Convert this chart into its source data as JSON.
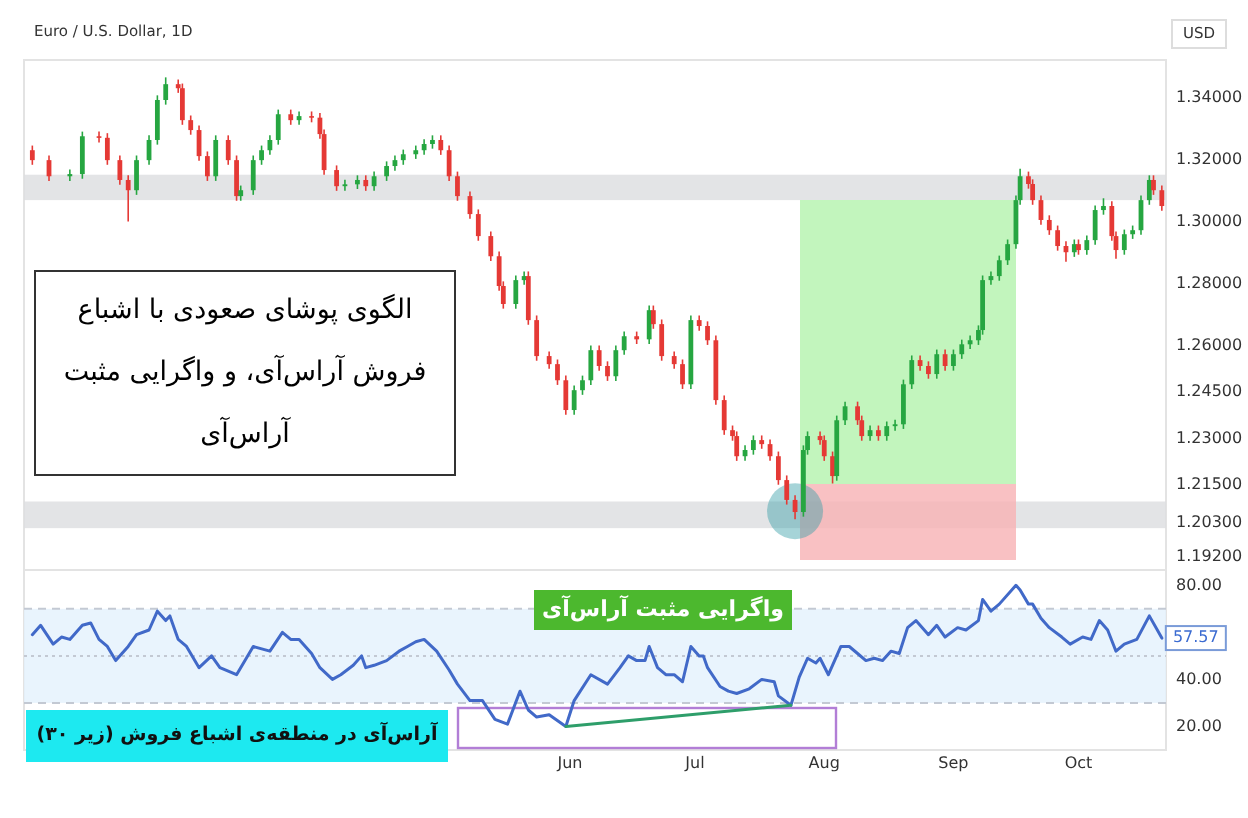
{
  "chart_data": [
    {
      "type": "candlestick",
      "title": "Euro / U.S. Dollar, 1D",
      "ylabel": "USD",
      "tick_labels": "y",
      "xlim": [
        "--01-21",
        "--10-22"
      ],
      "ylim": [
        1.1876,
        1.3521
      ],
      "yticks": [
        {
          "value": 1.34,
          "label": "1.34000"
        },
        {
          "value": 1.32,
          "label": "1.32000"
        },
        {
          "value": 1.3,
          "label": "1.30000"
        },
        {
          "value": 1.28,
          "label": "1.28000"
        },
        {
          "value": 1.26,
          "label": "1.26000"
        },
        {
          "value": 1.245,
          "label": "1.24500"
        },
        {
          "value": 1.23,
          "label": "1.23000"
        },
        {
          "value": 1.215,
          "label": "1.21500"
        },
        {
          "value": 1.203,
          "label": "1.20300"
        },
        {
          "value": 1.192,
          "label": "1.19200"
        }
      ],
      "bands": [
        {
          "axis": "y",
          "from": 1.3069,
          "to": 1.3151,
          "color": "#dcdde0"
        },
        {
          "axis": "y",
          "from": 1.2011,
          "to": 1.2097,
          "color": "#dcdde0"
        }
      ],
      "annotations": [
        "الگوی پوشای صعودی با اشباع فروش آراس‌آی، و واگرایی مثبت آراس‌آی"
      ],
      "x": [
        "--01-23",
        "--01-27",
        "--02-01",
        "--02-04",
        "--02-08",
        "--02-10",
        "--02-13",
        "--02-15",
        "--02-17",
        "--02-20",
        "--02-22",
        "--02-24",
        "--02-27",
        "--02-28",
        "--03-02",
        "--03-04",
        "--03-06",
        "--03-08",
        "--03-11",
        "--03-13",
        "--03-14",
        "--03-17",
        "--03-19",
        "--03-21",
        "--03-23",
        "--03-26",
        "--03-28",
        "--03-31",
        "--04-02",
        "--04-03",
        "--04-06",
        "--04-08",
        "--04-11",
        "--04-13",
        "--04-15",
        "--04-18",
        "--04-20",
        "--04-22",
        "--04-25",
        "--04-27",
        "--04-29",
        "--05-01",
        "--05-03",
        "--05-05",
        "--05-08",
        "--05-10",
        "--05-13",
        "--05-15",
        "--05-16",
        "--05-19",
        "--05-21",
        "--05-22",
        "--05-24",
        "--05-27",
        "--05-29",
        "--05-31",
        "--06-02",
        "--06-04",
        "--06-06",
        "--06-08",
        "--06-10",
        "--06-12",
        "--06-14",
        "--06-17",
        "--06-20",
        "--06-21",
        "--06-23",
        "--06-26",
        "--06-28",
        "--06-30",
        "--07-02",
        "--07-04",
        "--07-06",
        "--07-08",
        "--07-10",
        "--07-11",
        "--07-13",
        "--07-15",
        "--07-17",
        "--07-19",
        "--07-21",
        "--07-23",
        "--07-25",
        "--07-27",
        "--07-28",
        "--07-31",
        "--08-01",
        "--08-03",
        "--08-04",
        "--08-06",
        "--08-09",
        "--08-10",
        "--08-12",
        "--08-14",
        "--08-16",
        "--08-18",
        "--08-20",
        "--08-22",
        "--08-24",
        "--08-26",
        "--08-28",
        "--08-30",
        "--09-01",
        "--09-03",
        "--09-05",
        "--09-07",
        "--09-08",
        "--09-10",
        "--09-12",
        "--09-14",
        "--09-16",
        "--09-17",
        "--09-19",
        "--09-20",
        "--09-22",
        "--09-24",
        "--09-26",
        "--09-28",
        "--09-30",
        "--10-01",
        "--10-03",
        "--10-05",
        "--10-07",
        "--10-09",
        "--10-10",
        "--10-12",
        "--10-14",
        "--10-16",
        "--10-18",
        "--10-19",
        "--10-21"
      ],
      "ohlc": [
        [
          1.323,
          1.3245,
          1.3183,
          1.3198
        ],
        [
          1.3198,
          1.3213,
          1.3131,
          1.3146
        ],
        [
          1.3146,
          1.3168,
          1.3131,
          1.3153
        ],
        [
          1.3153,
          1.329,
          1.3138,
          1.3275
        ],
        [
          1.3275,
          1.329,
          1.3255,
          1.327
        ],
        [
          1.327,
          1.3285,
          1.3183,
          1.3198
        ],
        [
          1.3198,
          1.3213,
          1.3119,
          1.3134
        ],
        [
          1.3134,
          1.3149,
          1.3,
          1.3101
        ],
        [
          1.3101,
          1.3213,
          1.3086,
          1.3198
        ],
        [
          1.3198,
          1.3278,
          1.3183,
          1.3263
        ],
        [
          1.3263,
          1.3407,
          1.3248,
          1.3392
        ],
        [
          1.3392,
          1.3465,
          1.3377,
          1.3443
        ],
        [
          1.3443,
          1.3458,
          1.3415,
          1.343
        ],
        [
          1.343,
          1.3445,
          1.3312,
          1.3327
        ],
        [
          1.3327,
          1.3342,
          1.328,
          1.3295
        ],
        [
          1.3295,
          1.331,
          1.3196,
          1.3211
        ],
        [
          1.3211,
          1.3226,
          1.3131,
          1.3146
        ],
        [
          1.3146,
          1.3278,
          1.3131,
          1.3263
        ],
        [
          1.3263,
          1.3278,
          1.3183,
          1.3198
        ],
        [
          1.3198,
          1.3213,
          1.3067,
          1.3082
        ],
        [
          1.3082,
          1.3116,
          1.3067,
          1.3101
        ],
        [
          1.3101,
          1.3213,
          1.3086,
          1.3198
        ],
        [
          1.3198,
          1.3245,
          1.3183,
          1.323
        ],
        [
          1.323,
          1.3278,
          1.3215,
          1.3263
        ],
        [
          1.3263,
          1.3361,
          1.3248,
          1.3346
        ],
        [
          1.3346,
          1.3361,
          1.3312,
          1.3327
        ],
        [
          1.3327,
          1.3355,
          1.3312,
          1.334
        ],
        [
          1.334,
          1.3355,
          1.332,
          1.3335
        ],
        [
          1.3335,
          1.335,
          1.3267,
          1.3282
        ],
        [
          1.3282,
          1.3297,
          1.3151,
          1.3166
        ],
        [
          1.3166,
          1.3181,
          1.3099,
          1.3114
        ],
        [
          1.3114,
          1.3135,
          1.3099,
          1.312
        ],
        [
          1.312,
          1.3149,
          1.3105,
          1.3134
        ],
        [
          1.3134,
          1.3149,
          1.3099,
          1.3114
        ],
        [
          1.3114,
          1.3161,
          1.3099,
          1.3146
        ],
        [
          1.3146,
          1.3194,
          1.3131,
          1.3179
        ],
        [
          1.3179,
          1.3213,
          1.3164,
          1.3198
        ],
        [
          1.3198,
          1.3232,
          1.3183,
          1.3217
        ],
        [
          1.3217,
          1.3245,
          1.3202,
          1.323
        ],
        [
          1.323,
          1.3265,
          1.3215,
          1.325
        ],
        [
          1.325,
          1.3278,
          1.3235,
          1.3263
        ],
        [
          1.3263,
          1.3278,
          1.3215,
          1.323
        ],
        [
          1.323,
          1.3245,
          1.3131,
          1.3146
        ],
        [
          1.3146,
          1.3161,
          1.3067,
          1.3082
        ],
        [
          1.3082,
          1.3097,
          1.3009,
          1.3024
        ],
        [
          1.3024,
          1.3039,
          1.2938,
          1.2953
        ],
        [
          1.2953,
          1.2968,
          1.2873,
          1.2888
        ],
        [
          1.2888,
          1.2903,
          1.2777,
          1.2792
        ],
        [
          1.2792,
          1.2807,
          1.2719,
          1.2734
        ],
        [
          1.2734,
          1.2826,
          1.2719,
          1.2811
        ],
        [
          1.2811,
          1.2839,
          1.2796,
          1.2824
        ],
        [
          1.2824,
          1.2839,
          1.2667,
          1.2682
        ],
        [
          1.2682,
          1.2697,
          1.2551,
          1.2566
        ],
        [
          1.2566,
          1.2581,
          1.2525,
          1.254
        ],
        [
          1.254,
          1.2555,
          1.2473,
          1.2488
        ],
        [
          1.2488,
          1.2503,
          1.2377,
          1.2392
        ],
        [
          1.2392,
          1.2471,
          1.2377,
          1.2456
        ],
        [
          1.2456,
          1.2503,
          1.2441,
          1.2488
        ],
        [
          1.2488,
          1.26,
          1.2473,
          1.2585
        ],
        [
          1.2585,
          1.26,
          1.2519,
          1.2534
        ],
        [
          1.2534,
          1.2549,
          1.2486,
          1.2501
        ],
        [
          1.2501,
          1.26,
          1.2486,
          1.2585
        ],
        [
          1.2585,
          1.2645,
          1.257,
          1.263
        ],
        [
          1.263,
          1.2645,
          1.2605,
          1.262
        ],
        [
          1.262,
          1.2729,
          1.2605,
          1.2714
        ],
        [
          1.2714,
          1.2729,
          1.2654,
          1.2669
        ],
        [
          1.2669,
          1.2684,
          1.2551,
          1.2566
        ],
        [
          1.2566,
          1.2581,
          1.2525,
          1.254
        ],
        [
          1.254,
          1.2555,
          1.246,
          1.2475
        ],
        [
          1.2475,
          1.2697,
          1.246,
          1.2682
        ],
        [
          1.2682,
          1.2697,
          1.2648,
          1.2663
        ],
        [
          1.2663,
          1.2678,
          1.2602,
          1.2617
        ],
        [
          1.2617,
          1.2632,
          1.2409,
          1.2424
        ],
        [
          1.2424,
          1.2439,
          1.2312,
          1.2327
        ],
        [
          1.2327,
          1.2342,
          1.2293,
          1.2308
        ],
        [
          1.2308,
          1.2323,
          1.2228,
          1.2243
        ],
        [
          1.2243,
          1.2278,
          1.2228,
          1.2263
        ],
        [
          1.2263,
          1.231,
          1.2248,
          1.2295
        ],
        [
          1.2295,
          1.231,
          1.2267,
          1.2282
        ],
        [
          1.2282,
          1.2297,
          1.2228,
          1.2243
        ],
        [
          1.2243,
          1.2258,
          1.2151,
          1.2166
        ],
        [
          1.2166,
          1.2181,
          1.2087,
          1.2102
        ],
        [
          1.2102,
          1.2117,
          1.204,
          1.2063
        ],
        [
          1.2063,
          1.2278,
          1.2048,
          1.2263
        ],
        [
          1.2263,
          1.2323,
          1.2248,
          1.2308
        ],
        [
          1.2308,
          1.2323,
          1.228,
          1.2295
        ],
        [
          1.2295,
          1.231,
          1.2228,
          1.2243
        ],
        [
          1.2243,
          1.2258,
          1.2155,
          1.2179
        ],
        [
          1.2179,
          1.2374,
          1.2164,
          1.2359
        ],
        [
          1.2359,
          1.2419,
          1.2344,
          1.2404
        ],
        [
          1.2404,
          1.2419,
          1.2344,
          1.2359
        ],
        [
          1.2359,
          1.2374,
          1.2293,
          1.2308
        ],
        [
          1.2308,
          1.2342,
          1.2293,
          1.2327
        ],
        [
          1.2327,
          1.2342,
          1.2293,
          1.2308
        ],
        [
          1.2308,
          1.2355,
          1.2293,
          1.234
        ],
        [
          1.234,
          1.2361,
          1.2325,
          1.2346
        ],
        [
          1.2346,
          1.249,
          1.2331,
          1.2475
        ],
        [
          1.2475,
          1.2568,
          1.246,
          1.2553
        ],
        [
          1.2553,
          1.2568,
          1.2519,
          1.2534
        ],
        [
          1.2534,
          1.2549,
          1.2493,
          1.2508
        ],
        [
          1.2508,
          1.2587,
          1.2493,
          1.2572
        ],
        [
          1.2572,
          1.2587,
          1.2519,
          1.2534
        ],
        [
          1.2534,
          1.2587,
          1.2519,
          1.2572
        ],
        [
          1.2572,
          1.2619,
          1.2557,
          1.2604
        ],
        [
          1.2604,
          1.2632,
          1.2589,
          1.2617
        ],
        [
          1.2617,
          1.2665,
          1.2602,
          1.265
        ],
        [
          1.265,
          1.2826,
          1.2635,
          1.2811
        ],
        [
          1.2811,
          1.2839,
          1.2796,
          1.2824
        ],
        [
          1.2824,
          1.289,
          1.2809,
          1.2875
        ],
        [
          1.2875,
          1.2942,
          1.286,
          1.2927
        ],
        [
          1.2927,
          1.3084,
          1.2912,
          1.3069
        ],
        [
          1.3069,
          1.317,
          1.3054,
          1.3146
        ],
        [
          1.3146,
          1.3161,
          1.3106,
          1.3121
        ],
        [
          1.3121,
          1.3136,
          1.3054,
          1.3069
        ],
        [
          1.3069,
          1.3084,
          1.299,
          1.3005
        ],
        [
          1.3005,
          1.302,
          1.2957,
          1.2972
        ],
        [
          1.2972,
          1.2987,
          1.2906,
          1.2921
        ],
        [
          1.2921,
          1.2936,
          1.287,
          1.2901
        ],
        [
          1.2901,
          1.2942,
          1.2886,
          1.2927
        ],
        [
          1.2927,
          1.2942,
          1.2893,
          1.2908
        ],
        [
          1.2908,
          1.2955,
          1.2893,
          1.294
        ],
        [
          1.294,
          1.3052,
          1.2925,
          1.3037
        ],
        [
          1.3037,
          1.3075,
          1.3022,
          1.305
        ],
        [
          1.305,
          1.3065,
          1.2938,
          1.2953
        ],
        [
          1.2953,
          1.2968,
          1.288,
          1.2908
        ],
        [
          1.2908,
          1.2974,
          1.2893,
          1.2959
        ],
        [
          1.2959,
          1.2987,
          1.2944,
          1.2972
        ],
        [
          1.2972,
          1.3084,
          1.2957,
          1.3069
        ],
        [
          1.3069,
          1.3149,
          1.3054,
          1.3134
        ],
        [
          1.3134,
          1.3149,
          1.3086,
          1.3101
        ],
        [
          1.3101,
          1.3116,
          1.3035,
          1.305
        ]
      ],
      "colors": [
        "#e53935",
        "#e53935",
        "#26a641",
        "#26a641",
        "#e53935",
        "#e53935",
        "#e53935",
        "#e53935",
        "#26a641",
        "#26a641",
        "#26a641",
        "#26a641",
        "#e53935",
        "#e53935",
        "#e53935",
        "#e53935",
        "#e53935",
        "#26a641",
        "#e53935",
        "#e53935",
        "#26a641",
        "#26a641",
        "#26a641",
        "#26a641",
        "#26a641",
        "#e53935",
        "#26a641",
        "#e53935",
        "#e53935",
        "#e53935",
        "#e53935",
        "#26a641",
        "#26a641",
        "#e53935",
        "#26a641",
        "#26a641",
        "#26a641",
        "#26a641",
        "#26a641",
        "#26a641",
        "#26a641",
        "#e53935",
        "#e53935",
        "#e53935",
        "#e53935",
        "#e53935",
        "#e53935",
        "#e53935",
        "#e53935",
        "#26a641",
        "#26a641",
        "#e53935",
        "#e53935",
        "#e53935",
        "#e53935",
        "#e53935",
        "#26a641",
        "#26a641",
        "#26a641",
        "#e53935",
        "#e53935",
        "#26a641",
        "#26a641",
        "#e53935",
        "#26a641",
        "#e53935",
        "#e53935",
        "#e53935",
        "#e53935",
        "#26a641",
        "#e53935",
        "#e53935",
        "#e53935",
        "#e53935",
        "#e53935",
        "#e53935",
        "#26a641",
        "#26a641",
        "#e53935",
        "#e53935",
        "#e53935",
        "#e53935",
        "#e53935",
        "#26a641",
        "#26a641",
        "#e53935",
        "#e53935",
        "#e53935",
        "#26a641",
        "#26a641",
        "#e53935",
        "#e53935",
        "#26a641",
        "#e53935",
        "#26a641",
        "#26a641",
        "#26a641",
        "#26a641",
        "#e53935",
        "#e53935",
        "#26a641",
        "#e53935",
        "#26a641",
        "#26a641",
        "#26a641",
        "#26a641",
        "#26a641",
        "#26a641",
        "#26a641",
        "#26a641",
        "#26a641",
        "#26a641",
        "#e53935",
        "#e53935",
        "#e53935",
        "#e53935",
        "#e53935",
        "#e53935",
        "#26a641",
        "#e53935",
        "#26a641",
        "#26a641",
        "#26a641",
        "#e53935",
        "#e53935",
        "#26a641",
        "#26a641",
        "#26a641",
        "#26a641",
        "#e53935",
        "#e53935"
      ]
    },
    {
      "type": "line",
      "xlim": [
        "--01-21",
        "--10-22"
      ],
      "ylim": [
        10,
        86.5
      ],
      "xticks": [
        {
          "value": "--06-01",
          "label": "Jun"
        },
        {
          "value": "--07-01",
          "label": "Jul"
        },
        {
          "value": "--08-01",
          "label": "Aug"
        },
        {
          "value": "--09-01",
          "label": "Sep"
        },
        {
          "value": "--10-01",
          "label": "Oct"
        }
      ],
      "yticks": [
        {
          "value": 20,
          "label": "20.00"
        },
        {
          "value": 40,
          "label": "40.00"
        },
        {
          "value": 80,
          "label": "80.00"
        }
      ],
      "bands": [
        {
          "axis": "y",
          "from": 30,
          "to": 70,
          "color": "#e4f1fd"
        }
      ],
      "ref_lines": [
        {
          "axis": "y",
          "value": 70,
          "color": "#c3c9d3",
          "line_style": "dashed"
        },
        {
          "axis": "y",
          "value": 50,
          "color": "#c3c9d3",
          "line_style": "dotted"
        },
        {
          "axis": "y",
          "value": 30,
          "color": "#c3c9d3",
          "line_style": "dashed"
        }
      ],
      "annotations": [
        "واگرایی مثبت آراس‌آی",
        "آراس‌آی در منطقه‌ی اشباع فروش (زیر ۳۰)",
        {
          "text": "57.57",
          "x": "--10-21",
          "y": 57.57
        }
      ],
      "series": [
        {
          "color": "#4169c8",
          "x": [
            "--01-23",
            "--01-25",
            "--01-28",
            "--01-30",
            "--02-01",
            "--02-04",
            "--02-06",
            "--02-08",
            "--02-10",
            "--02-12",
            "--02-15",
            "--02-17",
            "--02-20",
            "--02-22",
            "--02-24",
            "--02-25",
            "--02-27",
            "--03-01",
            "--03-04",
            "--03-07",
            "--03-09",
            "--03-13",
            "--03-17",
            "--03-21",
            "--03-24",
            "--03-26",
            "--03-28",
            "--03-31",
            "--04-02",
            "--04-05",
            "--04-07",
            "--04-10",
            "--04-12",
            "--04-13",
            "--04-15",
            "--04-18",
            "--04-21",
            "--04-23",
            "--04-25",
            "--04-27",
            "--04-30",
            "--05-03",
            "--05-05",
            "--05-08",
            "--05-11",
            "--05-14",
            "--05-17",
            "--05-20",
            "--05-22",
            "--05-24",
            "--05-27",
            "--05-31",
            "--06-02",
            "--06-06",
            "--06-10",
            "--06-13",
            "--06-15",
            "--06-17",
            "--06-19",
            "--06-20",
            "--06-22",
            "--06-24",
            "--06-26",
            "--06-28",
            "--06-30",
            "--07-02",
            "--07-03",
            "--07-04",
            "--07-07",
            "--07-09",
            "--07-11",
            "--07-14",
            "--07-17",
            "--07-20",
            "--07-21",
            "--07-24",
            "--07-26",
            "--07-28",
            "--07-30",
            "--07-31",
            "--08-02",
            "--08-05",
            "--08-07",
            "--08-09",
            "--08-11",
            "--08-13",
            "--08-15",
            "--08-17",
            "--08-19",
            "--08-21",
            "--08-23",
            "--08-26",
            "--08-28",
            "--08-30",
            "--09-02",
            "--09-04",
            "--09-07",
            "--09-08",
            "--09-10",
            "--09-12",
            "--09-16",
            "--09-17",
            "--09-19",
            "--09-20",
            "--09-22",
            "--09-24",
            "--09-27",
            "--09-29",
            "--10-02",
            "--10-04",
            "--10-06",
            "--10-08",
            "--10-10",
            "--10-12",
            "--10-15",
            "--10-18",
            "--10-21"
          ],
          "values": [
            59,
            63,
            55,
            58,
            57,
            63,
            64,
            57,
            54,
            48,
            54,
            59,
            61,
            69,
            65,
            67,
            57,
            54,
            45,
            50,
            45,
            42,
            54,
            52,
            60,
            57,
            57,
            51,
            45,
            40,
            42,
            46,
            50,
            45,
            46,
            48,
            52,
            54,
            56,
            57,
            52,
            44,
            38,
            31,
            31,
            23,
            21,
            35,
            27,
            24,
            25,
            20,
            31,
            42,
            38,
            45,
            50,
            48,
            48,
            54,
            45,
            42,
            42,
            39,
            54,
            50,
            50,
            45,
            37,
            35,
            34,
            36,
            40,
            39,
            33,
            29,
            41,
            49,
            47,
            49,
            42,
            54,
            54,
            51,
            48,
            49,
            48,
            52,
            51,
            62,
            65,
            59,
            63,
            58,
            62,
            61,
            65,
            74,
            69,
            72,
            80,
            78,
            72,
            72,
            66,
            62,
            58,
            55,
            58,
            57,
            65,
            61,
            52,
            55,
            57,
            67,
            57.57
          ]
        },
        {
          "type": "line",
          "color": "#2e9e6a",
          "x": [
            "--05-31",
            "--07-24"
          ],
          "values": [
            20,
            29
          ]
        }
      ]
    }
  ]
}
